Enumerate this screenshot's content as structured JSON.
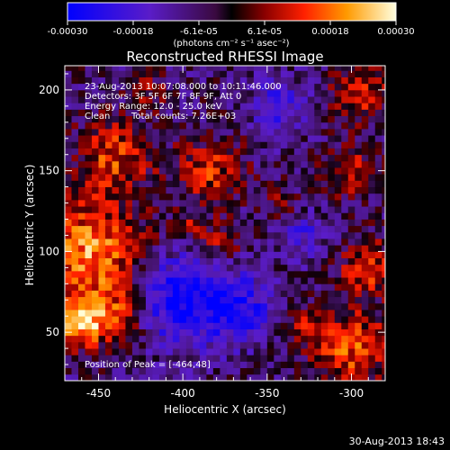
{
  "colorbar": {
    "ticks": [
      "-0.00030",
      "-0.00018",
      "-6.1e-05",
      "6.1e-05",
      "0.00018",
      "0.00030"
    ],
    "unit_label": "(photons cm⁻² s⁻¹ asec⁻²)",
    "range": [
      -0.0003,
      0.0003
    ]
  },
  "chart_data": {
    "type": "heatmap",
    "title": "Reconstructed RHESSI Image",
    "xlabel": "Heliocentric X (arcsec)",
    "ylabel": "Heliocentric Y (arcsec)",
    "xlim": [
      -470,
      -280
    ],
    "ylim": [
      20,
      215
    ],
    "xticks": [
      -450,
      -400,
      -350,
      -300
    ],
    "xtick_labels": [
      "-450",
      "-400",
      "-350",
      "-300"
    ],
    "yticks": [
      50,
      100,
      150,
      200
    ],
    "ytick_labels": [
      "50",
      "100",
      "150",
      "200"
    ],
    "annotations": [
      "23-Aug-2013 10:07:08.000 to 10:11:46.000",
      "Detectors: 3F 5F 6F 7F 8F 9F, Att 0",
      "Energy Range: 12.0 - 25.0 keV",
      "Clean",
      "Total counts: 7.26E+03"
    ],
    "peak_label": "Position of Peak = [-464,48]",
    "peak": [
      -464,
      48
    ]
  },
  "footer": {
    "timestamp": "30-Aug-2013 18:43"
  }
}
